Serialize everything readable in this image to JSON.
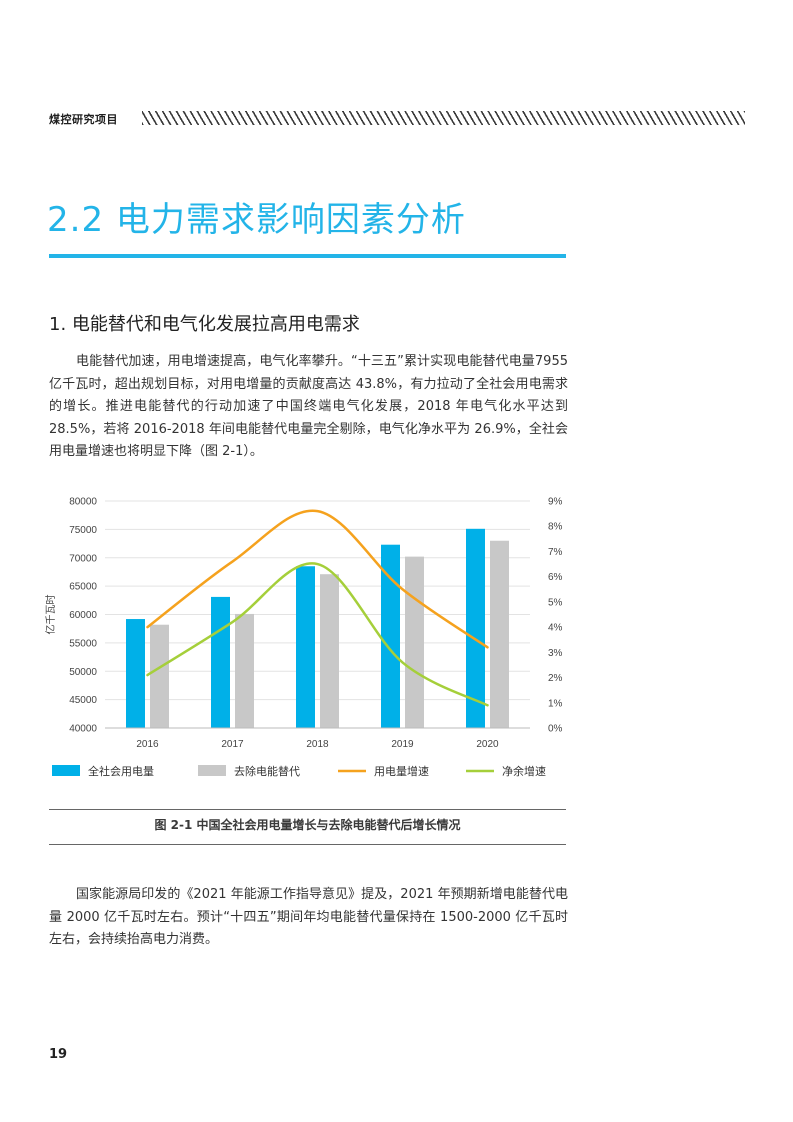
{
  "header": {
    "label": "煤控研究项目"
  },
  "section": {
    "title": "2.2 电力需求影响因素分析"
  },
  "subsection": {
    "title": "1. 电能替代和电气化发展拉高用电需求"
  },
  "paragraph1": "电能替代加速，用电增速提高，电气化率攀升。“十三五”累计实现电能替代电量7955亿千瓦时，超出规划目标，对用电增量的贡献度高达 43.8%，有力拉动了全社会用电需求的增长。推进电能替代的行动加速了中国终端电气化发展，2018 年电气化水平达到 28.5%，若将 2016-2018 年间电能替代电量完全剔除，电气化净水平为 26.9%，全社会用电量增速也将明显下降（图 2-1）。",
  "paragraph2": "国家能源局印发的《2021 年能源工作指导意见》提及，2021 年预期新增电能替代电量 2000 亿千瓦时左右。预计“十四五”期间年均电能替代量保持在 1500-2000 亿千瓦时左右，会持续抬高电力消费。",
  "caption": "图 2-1 中国全社会用电量增长与去除电能替代后增长情况",
  "page_number": "19",
  "chart_data": {
    "type": "bar",
    "title": "",
    "xlabel": "",
    "ylabel": "亿千瓦时",
    "categories": [
      "2016",
      "2017",
      "2018",
      "2019",
      "2020"
    ],
    "ylim": [
      40000,
      80000
    ],
    "y_ticks": [
      "40000",
      "45000",
      "50000",
      "55000",
      "60000",
      "65000",
      "70000",
      "75000",
      "80000"
    ],
    "y2lim": [
      0,
      9
    ],
    "y2_ticks": [
      "0%",
      "1%",
      "2%",
      "3%",
      "4%",
      "5%",
      "6%",
      "7%",
      "8%",
      "9%"
    ],
    "series": [
      {
        "name": "全社会用电量",
        "type": "bar",
        "axis": "left",
        "color": "#00b0e8",
        "values": [
          59200,
          63100,
          68500,
          72300,
          75100
        ]
      },
      {
        "name": "去除电能替代",
        "type": "bar",
        "axis": "left",
        "color": "#c8c8c8",
        "values": [
          58200,
          60100,
          67100,
          70200,
          73000
        ]
      },
      {
        "name": "用电量增速",
        "type": "line",
        "axis": "right",
        "color": "#f5a21e",
        "values": [
          4.0,
          6.6,
          8.6,
          5.5,
          3.2
        ]
      },
      {
        "name": "净余增速",
        "type": "line",
        "axis": "right",
        "color": "#a5cf3a",
        "values": [
          2.1,
          4.2,
          6.5,
          2.6,
          0.9
        ]
      }
    ],
    "legend_position": "bottom"
  }
}
